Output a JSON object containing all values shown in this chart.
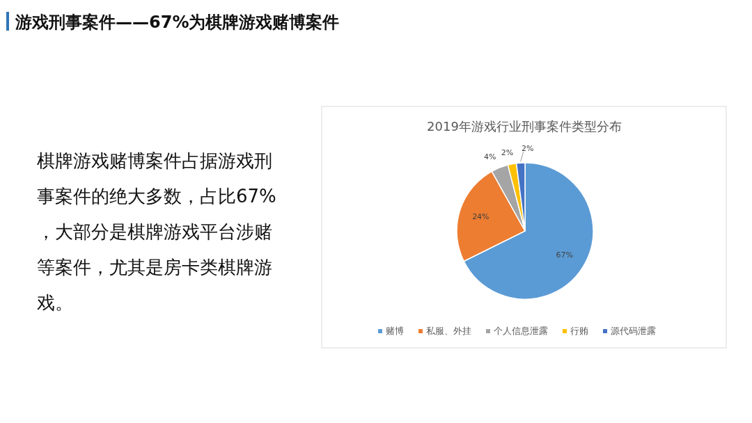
{
  "chart_data": {
    "type": "pie",
    "title": "2019年游戏行业刑事案件类型分布",
    "categories": [
      "赌博",
      "私服、外挂",
      "个人信息泄露",
      "行贿",
      "源代码泄露"
    ],
    "values": [
      67,
      24,
      4,
      2,
      2
    ],
    "colors": [
      "#5b9bd5",
      "#ed7d31",
      "#a5a5a5",
      "#ffc000",
      "#4472c4"
    ],
    "value_labels": [
      "67%",
      "24%",
      "4%",
      "2%",
      "2%"
    ],
    "legend": "bottom",
    "annotations": [
      "游戏刑事案件——67%为棋牌游戏赌博案件",
      "棋牌游戏赌博案件占据游戏刑事案件的绝大多数，占比67%，大部分是棋牌游戏平台涉赌等案件，尤其是房卡类棋牌游戏。"
    ]
  }
}
